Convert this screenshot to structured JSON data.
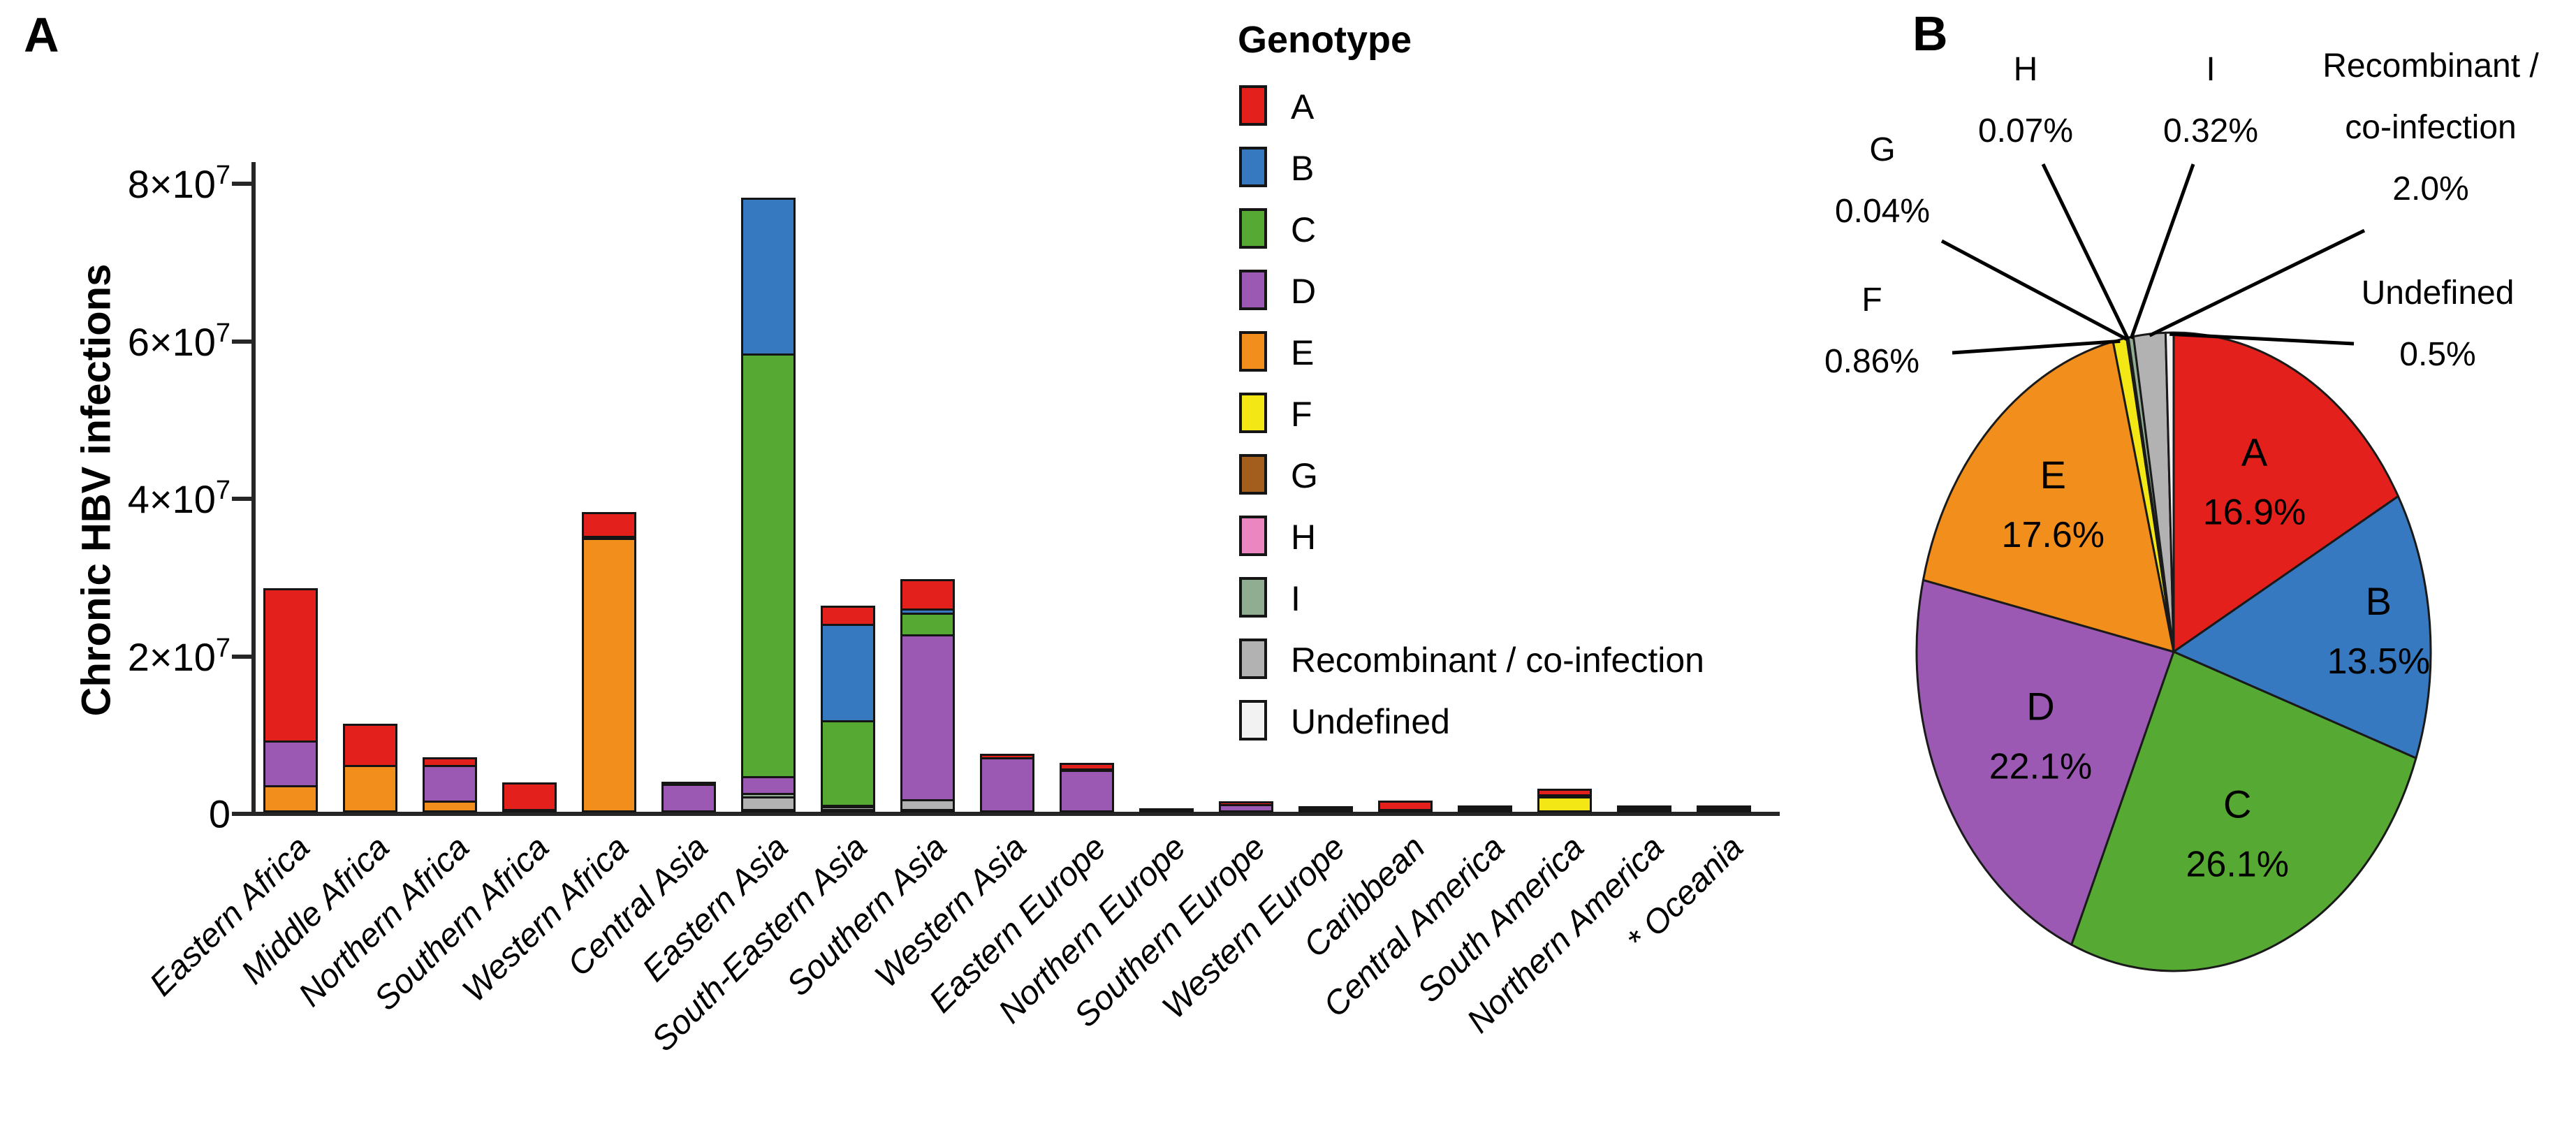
{
  "panels": {
    "a_label": "A",
    "b_label": "B"
  },
  "y_axis": {
    "title": "Chronic HBV infections",
    "ticks": [
      {
        "text": "8×10",
        "sup": "7",
        "value_e7": 8
      },
      {
        "text": "6×10",
        "sup": "7",
        "value_e7": 6
      },
      {
        "text": "4×10",
        "sup": "7",
        "value_e7": 4
      },
      {
        "text": "2×10",
        "sup": "7",
        "value_e7": 2
      },
      {
        "text": "0",
        "sup": "",
        "value_e7": 0
      }
    ]
  },
  "legend": {
    "title": "Genotype",
    "items": [
      {
        "label": "A",
        "color": "#e3201b"
      },
      {
        "label": "B",
        "color": "#3779c0"
      },
      {
        "label": "C",
        "color": "#56a932"
      },
      {
        "label": "D",
        "color": "#9b59b3"
      },
      {
        "label": "E",
        "color": "#f28e1c"
      },
      {
        "label": "F",
        "color": "#f3e816"
      },
      {
        "label": "G",
        "color": "#a35d1c"
      },
      {
        "label": "H",
        "color": "#ec86c0"
      },
      {
        "label": "I",
        "color": "#90ad92"
      },
      {
        "label": "Recombinant / co-infection",
        "color": "#b2b2b2"
      },
      {
        "label": "Undefined",
        "color": "#f2f2f2"
      }
    ]
  },
  "chart_data": [
    {
      "type": "bar",
      "stacked": true,
      "ylabel": "Chronic HBV infections",
      "ylim_e7": [
        0,
        8
      ],
      "yticks_e7": [
        0,
        2,
        4,
        6,
        8
      ],
      "grid": false,
      "legend_position": "upper-right",
      "stack_order_top_to_bottom": [
        "A",
        "B",
        "C",
        "D",
        "E",
        "F",
        "G",
        "H",
        "I",
        "Recombinant / co-infection",
        "Undefined"
      ],
      "categories": [
        "Eastern Africa",
        "Middle Africa",
        "Northern Africa",
        "Southern Africa",
        "Western Africa",
        "Central Asia",
        "Eastern Asia",
        "South-Eastern Asia",
        "Southern Asia",
        "Western Asia",
        "Eastern Europe",
        "Northern Europe",
        "Southern Europe",
        "Western Europe",
        "Caribbean",
        "Central America",
        "South America",
        "Northern America",
        "* Oceania"
      ],
      "series": [
        {
          "name": "A",
          "color": "#e3201b",
          "values_e7": [
            1.96,
            0.55,
            0.12,
            0.36,
            0.33,
            0.04,
            0,
            0.26,
            0.4,
            0.07,
            0.1,
            0.02,
            0.06,
            0.03,
            0.13,
            0,
            0.1,
            0.03,
            0.01
          ]
        },
        {
          "name": "B",
          "color": "#3779c0",
          "values_e7": [
            0,
            0,
            0,
            0,
            0,
            0,
            2.0,
            1.25,
            0.08,
            0,
            0.03,
            0,
            0,
            0,
            0,
            0,
            0,
            0.02,
            0
          ]
        },
        {
          "name": "C",
          "color": "#56a932",
          "values_e7": [
            0,
            0,
            0,
            0,
            0,
            0,
            5.39,
            1.1,
            0.3,
            0,
            0,
            0,
            0,
            0,
            0,
            0,
            0,
            0.04,
            0.02
          ]
        },
        {
          "name": "D",
          "color": "#9b59b3",
          "values_e7": [
            0.59,
            0,
            0.48,
            0,
            0.05,
            0.36,
            0.24,
            0,
            2.12,
            0.7,
            0.54,
            0,
            0.11,
            0.05,
            0.02,
            0.01,
            0.05,
            0,
            0.01
          ]
        },
        {
          "name": "E",
          "color": "#f28e1c",
          "values_e7": [
            0.35,
            0.6,
            0.15,
            0,
            3.49,
            0,
            0,
            0,
            0,
            0,
            0,
            0,
            0,
            0,
            0,
            0,
            0,
            0,
            0
          ]
        },
        {
          "name": "F",
          "color": "#f3e816",
          "values_e7": [
            0,
            0,
            0,
            0,
            0,
            0,
            0,
            0,
            0,
            0,
            0,
            0,
            0,
            0,
            0,
            0.01,
            0.2,
            0,
            0
          ]
        },
        {
          "name": "G",
          "color": "#a35d1c",
          "values_e7": [
            0,
            0,
            0,
            0,
            0,
            0,
            0,
            0,
            0,
            0,
            0,
            0,
            0,
            0,
            0,
            0,
            0,
            0,
            0
          ]
        },
        {
          "name": "H",
          "color": "#ec86c0",
          "values_e7": [
            0,
            0,
            0,
            0,
            0,
            0,
            0,
            0,
            0,
            0,
            0,
            0,
            0,
            0,
            0,
            0.01,
            0,
            0,
            0
          ]
        },
        {
          "name": "I",
          "color": "#90ad92",
          "values_e7": [
            0,
            0,
            0,
            0,
            0,
            0,
            0.07,
            0.02,
            0,
            0,
            0,
            0,
            0,
            0,
            0,
            0,
            0,
            0,
            0
          ]
        },
        {
          "name": "Recombinant / co-infection",
          "color": "#b2b2b2",
          "values_e7": [
            0,
            0,
            0,
            0.01,
            0,
            0,
            0.19,
            0.06,
            0.15,
            0,
            0,
            0,
            0,
            0,
            0,
            0,
            0,
            0,
            0
          ]
        },
        {
          "name": "Undefined",
          "color": "#f2f2f2",
          "values_e7": [
            0,
            0,
            0,
            0,
            0,
            0,
            0.04,
            0.02,
            0.03,
            0,
            0,
            0,
            0,
            0,
            0,
            0,
            0,
            0,
            0
          ]
        }
      ]
    },
    {
      "type": "pie",
      "start_angle_deg": 0,
      "direction": "clockwise",
      "slices": [
        {
          "name": "A",
          "pct_text": "16.9%",
          "value": 16.9,
          "color": "#e3201b",
          "label_style": "inside"
        },
        {
          "name": "B",
          "pct_text": "13.5%",
          "value": 13.5,
          "color": "#3779c0",
          "label_style": "inside"
        },
        {
          "name": "C",
          "pct_text": "26.1%",
          "value": 26.1,
          "color": "#56a932",
          "label_style": "inside"
        },
        {
          "name": "D",
          "pct_text": "22.1%",
          "value": 22.1,
          "color": "#9b59b3",
          "label_style": "inside"
        },
        {
          "name": "E",
          "pct_text": "17.6%",
          "value": 17.6,
          "color": "#f28e1c",
          "label_style": "inside"
        },
        {
          "name": "F",
          "pct_text": "0.86%",
          "value": 0.86,
          "color": "#f3e816",
          "label_style": "callout"
        },
        {
          "name": "G",
          "pct_text": "0.04%",
          "value": 0.04,
          "color": "#a35d1c",
          "label_style": "callout"
        },
        {
          "name": "H",
          "pct_text": "0.07%",
          "value": 0.07,
          "color": "#ec86c0",
          "label_style": "callout"
        },
        {
          "name": "I",
          "pct_text": "0.32%",
          "value": 0.32,
          "color": "#90ad92",
          "label_style": "callout"
        },
        {
          "name": "Recombinant / co-infection",
          "pct_text": "2.0%",
          "value": 2.0,
          "color": "#b2b2b2",
          "label_style": "callout",
          "callout_lines": [
            "Recombinant /",
            "co-infection"
          ]
        },
        {
          "name": "Undefined",
          "pct_text": "0.5%",
          "value": 0.5,
          "color": "#f2f2f2",
          "label_style": "callout"
        }
      ]
    }
  ]
}
